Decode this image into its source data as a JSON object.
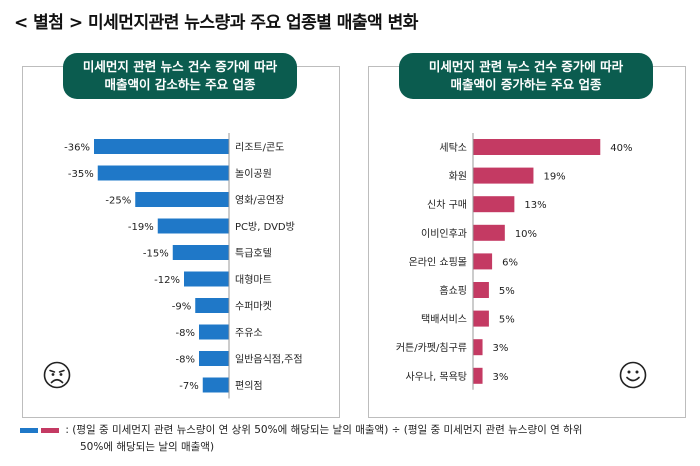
{
  "title": "< 별첨 > 미세먼지관련 뉴스량과 주요 업종별 매출액 변화",
  "legend_note_line1": ": (평일 중 미세먼지 관련 뉴스량이 연 상위 50%에 해당되는 날의 매출액) ÷ (평일 중 미세먼지 관련 뉴스량이 연 하위",
  "legend_note_line2": "50%에 해당되는 날의 매출액)",
  "colors": {
    "decrease": "#1f78c8",
    "increase": "#c43a63",
    "header": "#0b5c4f"
  },
  "icons": {
    "left": "sad-face-icon",
    "right": "smile-face-icon"
  },
  "chart_data": [
    {
      "type": "bar",
      "orientation": "horizontal",
      "title_line1": "미세먼지 관련 뉴스 건수 증가에 따라",
      "title_line2": "매출액이 감소하는 주요 업종",
      "categories": [
        "리조트/콘도",
        "놀이공원",
        "영화/공연장",
        "PC방, DVD방",
        "특급호텔",
        "대형마트",
        "수퍼마켓",
        "주유소",
        "일반음식점,주점",
        "편의점"
      ],
      "values": [
        -36,
        -35,
        -25,
        -19,
        -15,
        -12,
        -9,
        -8,
        -8,
        -7
      ],
      "value_labels": [
        "-36%",
        "-35%",
        "-25%",
        "-19%",
        "-15%",
        "-12%",
        "-9%",
        "-8%",
        "-8%",
        "-7%"
      ],
      "xlim": [
        -40,
        0
      ]
    },
    {
      "type": "bar",
      "orientation": "horizontal",
      "title_line1": "미세먼지 관련 뉴스 건수 증가에 따라",
      "title_line2": "매출액이 증가하는 주요 업종",
      "categories": [
        "세탁소",
        "화원",
        "신차 구매",
        "이비인후과",
        "온라인 쇼핑몰",
        "홈쇼핑",
        "택배서비스",
        "커튼/카펫/침구류",
        "사우나, 목욕탕"
      ],
      "values": [
        40,
        19,
        13,
        10,
        6,
        5,
        5,
        3,
        3
      ],
      "value_labels": [
        "40%",
        "19%",
        "13%",
        "10%",
        "6%",
        "5%",
        "5%",
        "3%",
        "3%"
      ],
      "xlim": [
        0,
        44
      ]
    }
  ]
}
